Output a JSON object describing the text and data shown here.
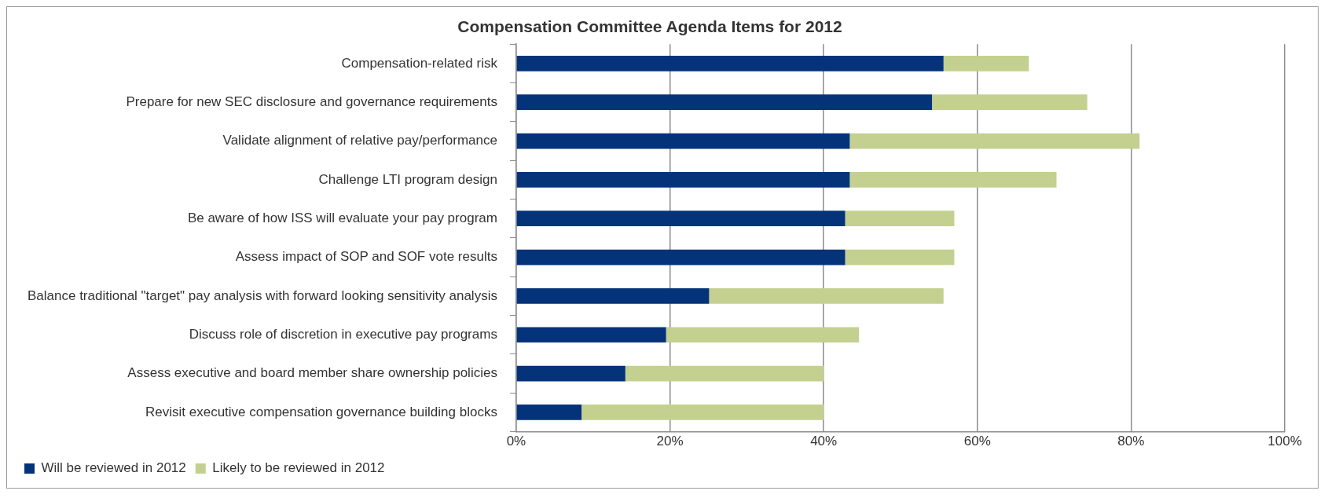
{
  "chart_data": {
    "type": "bar",
    "orientation": "horizontal",
    "stacked": true,
    "title": "Compensation Committee Agenda Items for 2012",
    "categories": [
      "Compensation-related risk",
      "Prepare for new SEC disclosure and governance requirements",
      "Validate alignment of relative pay/performance",
      "Challenge LTI program design",
      "Be aware of how ISS will evaluate your pay program",
      "Assess impact of SOP and SOF vote results",
      "Balance traditional \"target\" pay analysis with forward looking sensitivity analysis",
      "Discuss role of discretion in executive pay programs",
      "Assess executive and board member share ownership policies",
      "Revisit executive compensation governance building blocks"
    ],
    "series": [
      {
        "name": "Will be reviewed in 2012",
        "color": "#04337a",
        "values": [
          55.6,
          54.1,
          43.4,
          43.4,
          42.8,
          42.8,
          25.1,
          19.5,
          14.2,
          8.5
        ]
      },
      {
        "name": "Likely to be reviewed in 2012",
        "color": "#c3d08f",
        "values": [
          11.1,
          20.2,
          37.7,
          26.9,
          14.2,
          14.2,
          30.5,
          25.1,
          25.8,
          31.5
        ]
      }
    ],
    "xlim": [
      0,
      100
    ],
    "xticks": [
      {
        "value": 0,
        "label": "0%"
      },
      {
        "value": 20,
        "label": "20%"
      },
      {
        "value": 40,
        "label": "40%"
      },
      {
        "value": 60,
        "label": "60%"
      },
      {
        "value": 80,
        "label": "80%"
      },
      {
        "value": 100,
        "label": "100%"
      }
    ],
    "grid": "x",
    "legend": "bottom left"
  }
}
